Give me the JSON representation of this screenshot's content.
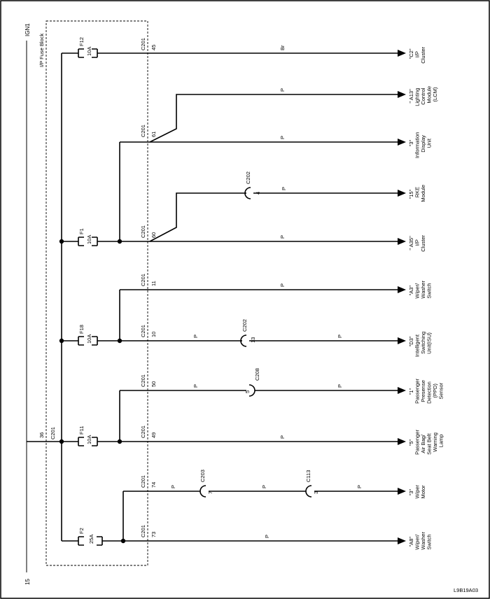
{
  "power": {
    "source_label": "IGN1",
    "ground_label": "15",
    "block_title": "I/P Fuse Block",
    "bus_connector": "C201",
    "bus_pin": "36"
  },
  "fuses": [
    {
      "name": "F12",
      "rating": "10A"
    },
    {
      "name": "F1",
      "rating": "10A"
    },
    {
      "name": "F18",
      "rating": "10A"
    },
    {
      "name": "F11",
      "rating": "10A"
    },
    {
      "name": "F2",
      "rating": "25A"
    }
  ],
  "circuits": [
    {
      "connector": "C201",
      "pin": "45",
      "wire_color": "Br",
      "destination": [
        "\"C2\"",
        "I/P",
        "Cluster"
      ]
    },
    {
      "connector": "",
      "pin": "",
      "wire_color": "P",
      "destination": [
        "\" A13\"",
        "Lighting",
        "Control",
        "Module",
        "(LCM)"
      ]
    },
    {
      "connector": "C201",
      "pin": "61",
      "wire_color": "P",
      "destination": [
        "\"3\"",
        "Information",
        "Display",
        "Unit"
      ]
    },
    {
      "connector": "C202",
      "pin": "4",
      "wire_color": "P",
      "destination": [
        "\"15\"",
        "RKE",
        "Module"
      ]
    },
    {
      "connector": "C201",
      "pin": "60",
      "wire_color": "P",
      "destination": [
        "\" A35\"",
        "I/P",
        "Cluster"
      ]
    },
    {
      "connector": "C201",
      "pin": "11",
      "wire_color": "P",
      "destination": [
        "\"A3\"",
        "Wiper/",
        "Washer",
        "Switch"
      ]
    },
    {
      "connector": "C201",
      "pin": "10",
      "wire_color": "P",
      "destination": [
        "\"D3\"",
        "Intelligent",
        "Switching",
        "Unit(ISU)"
      ]
    },
    {
      "connector": "C201",
      "pin": "50",
      "wire_color": "P",
      "destination": [
        "\"1\"",
        "Passenger",
        "Presense",
        "Detection",
        "(PPD)",
        "Sensor"
      ]
    },
    {
      "connector": "C201",
      "pin": "49",
      "wire_color": "P",
      "destination": [
        "\"5\"",
        "Passenger",
        "Air Bag/",
        "Seat Belt",
        "Warning",
        "Lamp"
      ]
    },
    {
      "connector": "C201",
      "pin": "74",
      "wire_color": "P",
      "destination": [
        "\"3\"",
        "Wiper",
        "Motor"
      ]
    },
    {
      "connector": "C201",
      "pin": "73",
      "wire_color": "P",
      "destination": [
        "\"A8\"",
        "Wiper/",
        "Washer",
        "Switch"
      ]
    }
  ],
  "inline_connectors": [
    {
      "name": "C202",
      "pin": "13",
      "wire_color": "P"
    },
    {
      "name": "C208",
      "pin": "5",
      "wire_color": "P"
    },
    {
      "name": "C203",
      "pin": "7",
      "wire_color": "P"
    },
    {
      "name": "C113",
      "pin": "3",
      "wire_color": "P"
    }
  ],
  "figure_id": "L9B19A03"
}
